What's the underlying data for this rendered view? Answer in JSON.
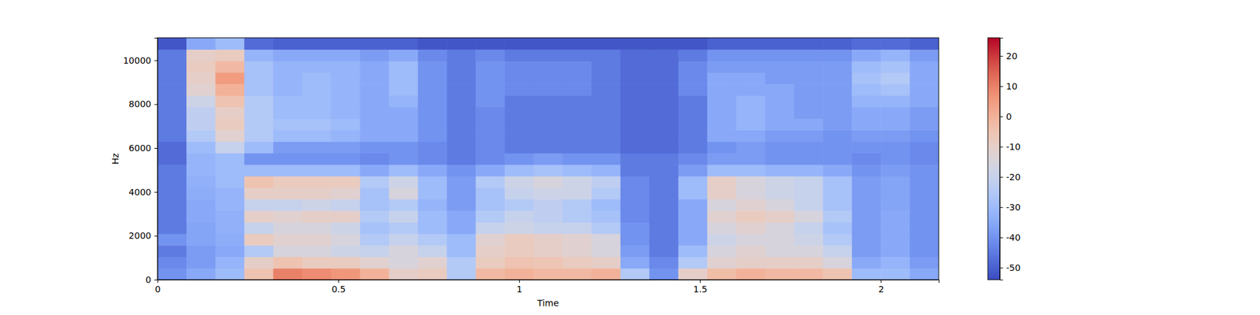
{
  "chart_data": {
    "type": "heatmap",
    "x_label": "Time",
    "y_label": "Hz",
    "xlim": [
      0,
      2.16
    ],
    "ylim": [
      0,
      11025
    ],
    "xticks": [
      0,
      0.5,
      1,
      1.5,
      2
    ],
    "yticks": [
      0,
      2000,
      4000,
      6000,
      8000,
      10000
    ],
    "x_edges": [
      0,
      0.08,
      0.16,
      0.24,
      0.32,
      0.4,
      0.48,
      0.56,
      0.64,
      0.72,
      0.8,
      0.88,
      0.96,
      1.04,
      1.12,
      1.2,
      1.28,
      1.36,
      1.44,
      1.52,
      1.6,
      1.68,
      1.76,
      1.84,
      1.92,
      2.0,
      2.08,
      2.16
    ],
    "y_edges": [
      0,
      525,
      1050,
      1575,
      2100,
      2625,
      3150,
      3675,
      4200,
      4725,
      5250,
      5775,
      6300,
      6825,
      7350,
      7875,
      8400,
      8925,
      9450,
      9975,
      10500,
      11025
    ],
    "z": [
      [
        -40,
        -35,
        -30,
        -5,
        10,
        8,
        6,
        0,
        -10,
        -8,
        -25,
        -2,
        0,
        -2,
        -2,
        0,
        -25,
        -40,
        -10,
        -3,
        0,
        -2,
        -2,
        -5,
        -30,
        -30,
        -35
      ],
      [
        -42,
        -38,
        -32,
        -10,
        -5,
        -8,
        -8,
        -12,
        -15,
        -12,
        -25,
        -8,
        -5,
        -6,
        -8,
        -10,
        -35,
        -42,
        -25,
        -12,
        -10,
        -10,
        -10,
        -15,
        -35,
        -32,
        -38
      ],
      [
        -45,
        -38,
        -35,
        -25,
        -15,
        -15,
        -18,
        -20,
        -15,
        -20,
        -30,
        -10,
        -8,
        -10,
        -12,
        -15,
        -38,
        -45,
        -30,
        -15,
        -12,
        -15,
        -15,
        -20,
        -38,
        -35,
        -40
      ],
      [
        -40,
        -36,
        -34,
        -8,
        -12,
        -12,
        -15,
        -25,
        -20,
        -25,
        -30,
        -12,
        -8,
        -10,
        -12,
        -15,
        -40,
        -45,
        -35,
        -18,
        -15,
        -15,
        -18,
        -25,
        -38,
        -35,
        -40
      ],
      [
        -45,
        -36,
        -33,
        -20,
        -15,
        -15,
        -18,
        -28,
        -25,
        -30,
        -35,
        -20,
        -18,
        -20,
        -20,
        -25,
        -40,
        -45,
        -35,
        -15,
        -12,
        -15,
        -20,
        -28,
        -38,
        -35,
        -40
      ],
      [
        -45,
        -35,
        -33,
        -10,
        -12,
        -10,
        -10,
        -25,
        -20,
        -30,
        -35,
        -25,
        -20,
        -22,
        -25,
        -28,
        -42,
        -45,
        -35,
        -12,
        -8,
        -10,
        -15,
        -25,
        -38,
        -35,
        -40
      ],
      [
        -45,
        -35,
        -32,
        -20,
        -20,
        -18,
        -20,
        -28,
        -25,
        -32,
        -38,
        -28,
        -25,
        -22,
        -25,
        -30,
        -42,
        -45,
        -35,
        -15,
        -12,
        -15,
        -20,
        -28,
        -38,
        -36,
        -40
      ],
      [
        -45,
        -34,
        -32,
        -10,
        -10,
        -10,
        -12,
        -28,
        -15,
        -30,
        -38,
        -28,
        -20,
        -18,
        -18,
        -25,
        -42,
        -45,
        -30,
        -10,
        -15,
        -18,
        -20,
        -28,
        -38,
        -36,
        -40
      ],
      [
        -45,
        -33,
        -30,
        -5,
        -8,
        -8,
        -8,
        -25,
        -18,
        -30,
        -38,
        -25,
        -18,
        -15,
        -18,
        -22,
        -42,
        -45,
        -30,
        -10,
        -15,
        -18,
        -20,
        -28,
        -38,
        -36,
        -40
      ],
      [
        -45,
        -32,
        -30,
        -30,
        -30,
        -30,
        -30,
        -35,
        -30,
        -35,
        -40,
        -35,
        -30,
        -28,
        -30,
        -32,
        -45,
        -45,
        -38,
        -30,
        -30,
        -32,
        -32,
        -35,
        -40,
        -38,
        -40
      ],
      [
        -48,
        -32,
        -30,
        -40,
        -40,
        -40,
        -40,
        -42,
        -40,
        -42,
        -45,
        -42,
        -40,
        -38,
        -40,
        -40,
        -45,
        -45,
        -42,
        -38,
        -38,
        -40,
        -40,
        -40,
        -42,
        -40,
        -42
      ],
      [
        -48,
        -30,
        -20,
        -30,
        -38,
        -38,
        -38,
        -40,
        -40,
        -42,
        -45,
        -42,
        -45,
        -45,
        -45,
        -45,
        -48,
        -48,
        -45,
        -40,
        -38,
        -40,
        -40,
        -40,
        -40,
        -40,
        -42
      ],
      [
        -45,
        -25,
        -12,
        -25,
        -30,
        -30,
        -32,
        -35,
        -35,
        -40,
        -45,
        -42,
        -45,
        -45,
        -45,
        -45,
        -48,
        -48,
        -45,
        -35,
        -35,
        -38,
        -38,
        -40,
        -38,
        -38,
        -40
      ],
      [
        -45,
        -22,
        -8,
        -25,
        -28,
        -28,
        -30,
        -35,
        -35,
        -40,
        -45,
        -42,
        -45,
        -45,
        -45,
        -45,
        -48,
        -48,
        -45,
        -35,
        -32,
        -35,
        -35,
        -38,
        -35,
        -35,
        -38
      ],
      [
        -45,
        -22,
        -10,
        -25,
        -30,
        -30,
        -32,
        -35,
        -35,
        -40,
        -45,
        -42,
        -45,
        -45,
        -45,
        -45,
        -48,
        -48,
        -45,
        -35,
        -32,
        -35,
        -38,
        -38,
        -35,
        -35,
        -38
      ],
      [
        -45,
        -18,
        -5,
        -25,
        -30,
        -30,
        -32,
        -35,
        -32,
        -40,
        -45,
        -40,
        -45,
        -45,
        -45,
        -45,
        -48,
        -48,
        -45,
        -35,
        -32,
        -35,
        -38,
        -38,
        -32,
        -32,
        -35
      ],
      [
        -45,
        -12,
        0,
        -28,
        -32,
        -30,
        -32,
        -35,
        -30,
        -40,
        -45,
        -40,
        -42,
        -42,
        -42,
        -45,
        -48,
        -48,
        -42,
        -35,
        -35,
        -35,
        -38,
        -38,
        -30,
        -28,
        -35
      ],
      [
        -45,
        -10,
        5,
        -28,
        -32,
        -30,
        -32,
        -35,
        -30,
        -40,
        -45,
        -40,
        -42,
        -42,
        -42,
        -45,
        -48,
        -48,
        -42,
        -35,
        -35,
        -38,
        -38,
        -38,
        -28,
        -25,
        -35
      ],
      [
        -45,
        -8,
        -2,
        -28,
        -32,
        -32,
        -32,
        -35,
        -30,
        -40,
        -45,
        -40,
        -42,
        -42,
        -42,
        -45,
        -48,
        -48,
        -42,
        -38,
        -38,
        -38,
        -38,
        -38,
        -30,
        -28,
        -35
      ],
      [
        -45,
        -10,
        -8,
        -32,
        -35,
        -35,
        -35,
        -38,
        -35,
        -42,
        -45,
        -42,
        -45,
        -45,
        -45,
        -45,
        -48,
        -48,
        -45,
        -40,
        -40,
        -40,
        -40,
        -40,
        -35,
        -32,
        -38
      ],
      [
        -52,
        -35,
        -30,
        -48,
        -50,
        -50,
        -50,
        -50,
        -50,
        -52,
        -52,
        -52,
        -52,
        -52,
        -52,
        -52,
        -52,
        -52,
        -52,
        -50,
        -50,
        -50,
        -50,
        -50,
        -48,
        -48,
        -50
      ]
    ],
    "colorbar": {
      "range": [
        -54,
        26
      ],
      "ticks": [
        -50,
        -40,
        -30,
        -20,
        -10,
        0,
        10,
        20
      ]
    }
  }
}
